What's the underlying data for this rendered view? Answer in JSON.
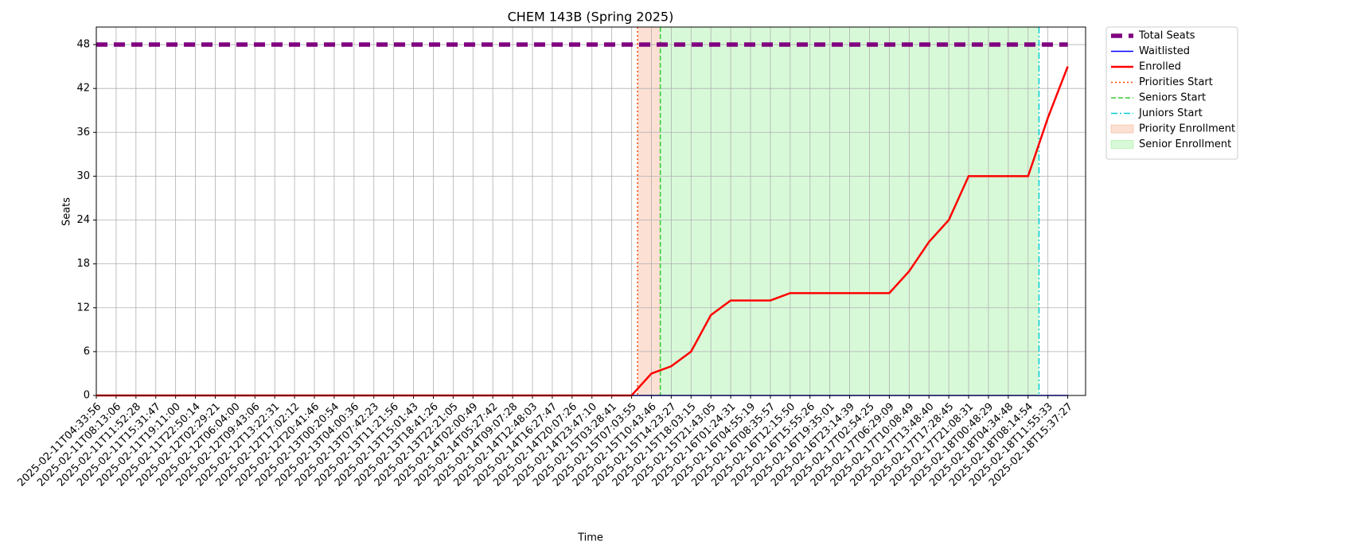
{
  "chart_data": {
    "type": "line",
    "title": "CHEM 143B (Spring 2025)",
    "x_label": "Time",
    "y_label": "Seats",
    "categories": [
      "2025-02-11T04:33:56",
      "2025-02-11T08:13:06",
      "2025-02-11T11:52:28",
      "2025-02-11T15:31:47",
      "2025-02-11T19:11:00",
      "2025-02-11T22:50:14",
      "2025-02-12T02:29:21",
      "2025-02-12T06:04:00",
      "2025-02-12T09:43:06",
      "2025-02-12T13:22:31",
      "2025-02-12T17:02:12",
      "2025-02-12T20:41:46",
      "2025-02-13T00:20:54",
      "2025-02-13T04:00:36",
      "2025-02-13T07:42:23",
      "2025-02-13T11:21:56",
      "2025-02-13T15:01:43",
      "2025-02-13T18:41:26",
      "2025-02-13T22:21:05",
      "2025-02-14T02:00:49",
      "2025-02-14T05:27:42",
      "2025-02-14T09:07:28",
      "2025-02-14T12:48:03",
      "2025-02-14T16:27:47",
      "2025-02-14T20:07:26",
      "2025-02-14T23:47:10",
      "2025-02-15T03:28:41",
      "2025-02-15T07:03:55",
      "2025-02-15T10:43:46",
      "2025-02-15T14:23:27",
      "2025-02-15T18:03:15",
      "2025-02-15T21:43:05",
      "2025-02-16T01:24:31",
      "2025-02-16T04:55:19",
      "2025-02-16T08:35:57",
      "2025-02-16T12:15:50",
      "2025-02-16T15:55:26",
      "2025-02-16T19:35:01",
      "2025-02-16T23:14:39",
      "2025-02-17T02:54:25",
      "2025-02-17T06:29:09",
      "2025-02-17T10:08:49",
      "2025-02-17T13:48:40",
      "2025-02-17T17:28:45",
      "2025-02-17T21:08:31",
      "2025-02-18T00:48:29",
      "2025-02-18T04:34:48",
      "2025-02-18T08:14:54",
      "2025-02-18T11:55:33",
      "2025-02-18T15:37:27"
    ],
    "series": [
      {
        "name": "Total Seats",
        "color": "#800080",
        "style": "thick-dashed",
        "values": [
          48,
          48,
          48,
          48,
          48,
          48,
          48,
          48,
          48,
          48,
          48,
          48,
          48,
          48,
          48,
          48,
          48,
          48,
          48,
          48,
          48,
          48,
          48,
          48,
          48,
          48,
          48,
          48,
          48,
          48,
          48,
          48,
          48,
          48,
          48,
          48,
          48,
          48,
          48,
          48,
          48,
          48,
          48,
          48,
          48,
          48,
          48,
          48,
          48,
          48
        ]
      },
      {
        "name": "Waitlisted",
        "color": "#0000ff",
        "style": "solid",
        "values": [
          0,
          0,
          0,
          0,
          0,
          0,
          0,
          0,
          0,
          0,
          0,
          0,
          0,
          0,
          0,
          0,
          0,
          0,
          0,
          0,
          0,
          0,
          0,
          0,
          0,
          0,
          0,
          0,
          0,
          0,
          0,
          0,
          0,
          0,
          0,
          0,
          0,
          0,
          0,
          0,
          0,
          0,
          0,
          0,
          0,
          0,
          0,
          0,
          0,
          0
        ]
      },
      {
        "name": "Enrolled",
        "color": "#ff0000",
        "style": "solid-bold",
        "values": [
          0,
          0,
          0,
          0,
          0,
          0,
          0,
          0,
          0,
          0,
          0,
          0,
          0,
          0,
          0,
          0,
          0,
          0,
          0,
          0,
          0,
          0,
          0,
          0,
          0,
          0,
          0,
          0,
          3,
          4,
          6,
          11,
          13,
          13,
          13,
          14,
          14,
          14,
          14,
          14,
          14,
          17,
          21,
          24,
          30,
          30,
          30,
          30,
          38,
          45
        ]
      }
    ],
    "vlines": [
      {
        "name": "Priorities Start",
        "color": "#ff4500",
        "style": "dotted",
        "x": 27.3
      },
      {
        "name": "Seniors Start",
        "color": "#32cd32",
        "style": "dashed",
        "x": 28.45
      },
      {
        "name": "Juniors Start",
        "color": "#00ced1",
        "style": "dashdot",
        "x": 47.55
      }
    ],
    "spans": [
      {
        "name": "Priority Enrollment",
        "color": "#f4a582",
        "from": 27.3,
        "to": 28.45
      },
      {
        "name": "Senior Enrollment",
        "color": "#90ee90",
        "from": 28.45,
        "to": 47.55
      }
    ],
    "ylim": [
      0,
      50.4
    ],
    "yticks": [
      0,
      6,
      12,
      18,
      24,
      30,
      36,
      42,
      48
    ],
    "grid": true,
    "legend": "outside-upper-right"
  }
}
